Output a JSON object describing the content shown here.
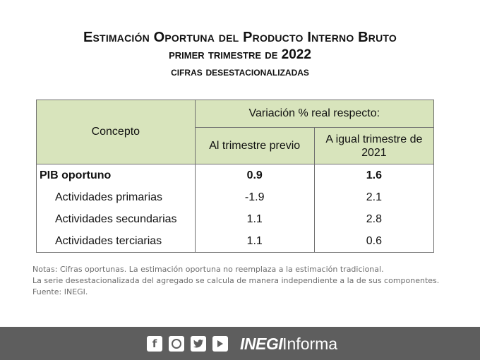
{
  "title": {
    "line1": "Estimación Oportuna del Producto Interno Bruto",
    "line2": "primer trimestre de 2022",
    "line3": "cifras desestacionalizadas"
  },
  "table": {
    "header_concepto": "Concepto",
    "header_variacion": "Variación % real respecto:",
    "header_col1": "Al trimestre previo",
    "header_col2": "A igual trimestre de 2021",
    "rows": [
      {
        "concepto": "PIB oportuno",
        "previo": "0.9",
        "anual": "1.6"
      },
      {
        "concepto": "Actividades primarias",
        "previo": "-1.9",
        "anual": "2.1"
      },
      {
        "concepto": "Actividades secundarias",
        "previo": "1.1",
        "anual": "2.8"
      },
      {
        "concepto": "Actividades terciarias",
        "previo": "1.1",
        "anual": "0.6"
      }
    ]
  },
  "notes": [
    "Notas: Cifras oportunas. La estimación oportuna no reemplaza a la estimación tradicional.",
    "La serie desestacionalizada del agregado se calcula de manera independiente a la de sus componentes.",
    "Fuente: INEGI."
  ],
  "footer": {
    "icons": [
      "facebook-icon",
      "instagram-icon",
      "twitter-icon",
      "youtube-icon"
    ],
    "brand_bold": "INEGI",
    "brand_regular": "Informa"
  }
}
